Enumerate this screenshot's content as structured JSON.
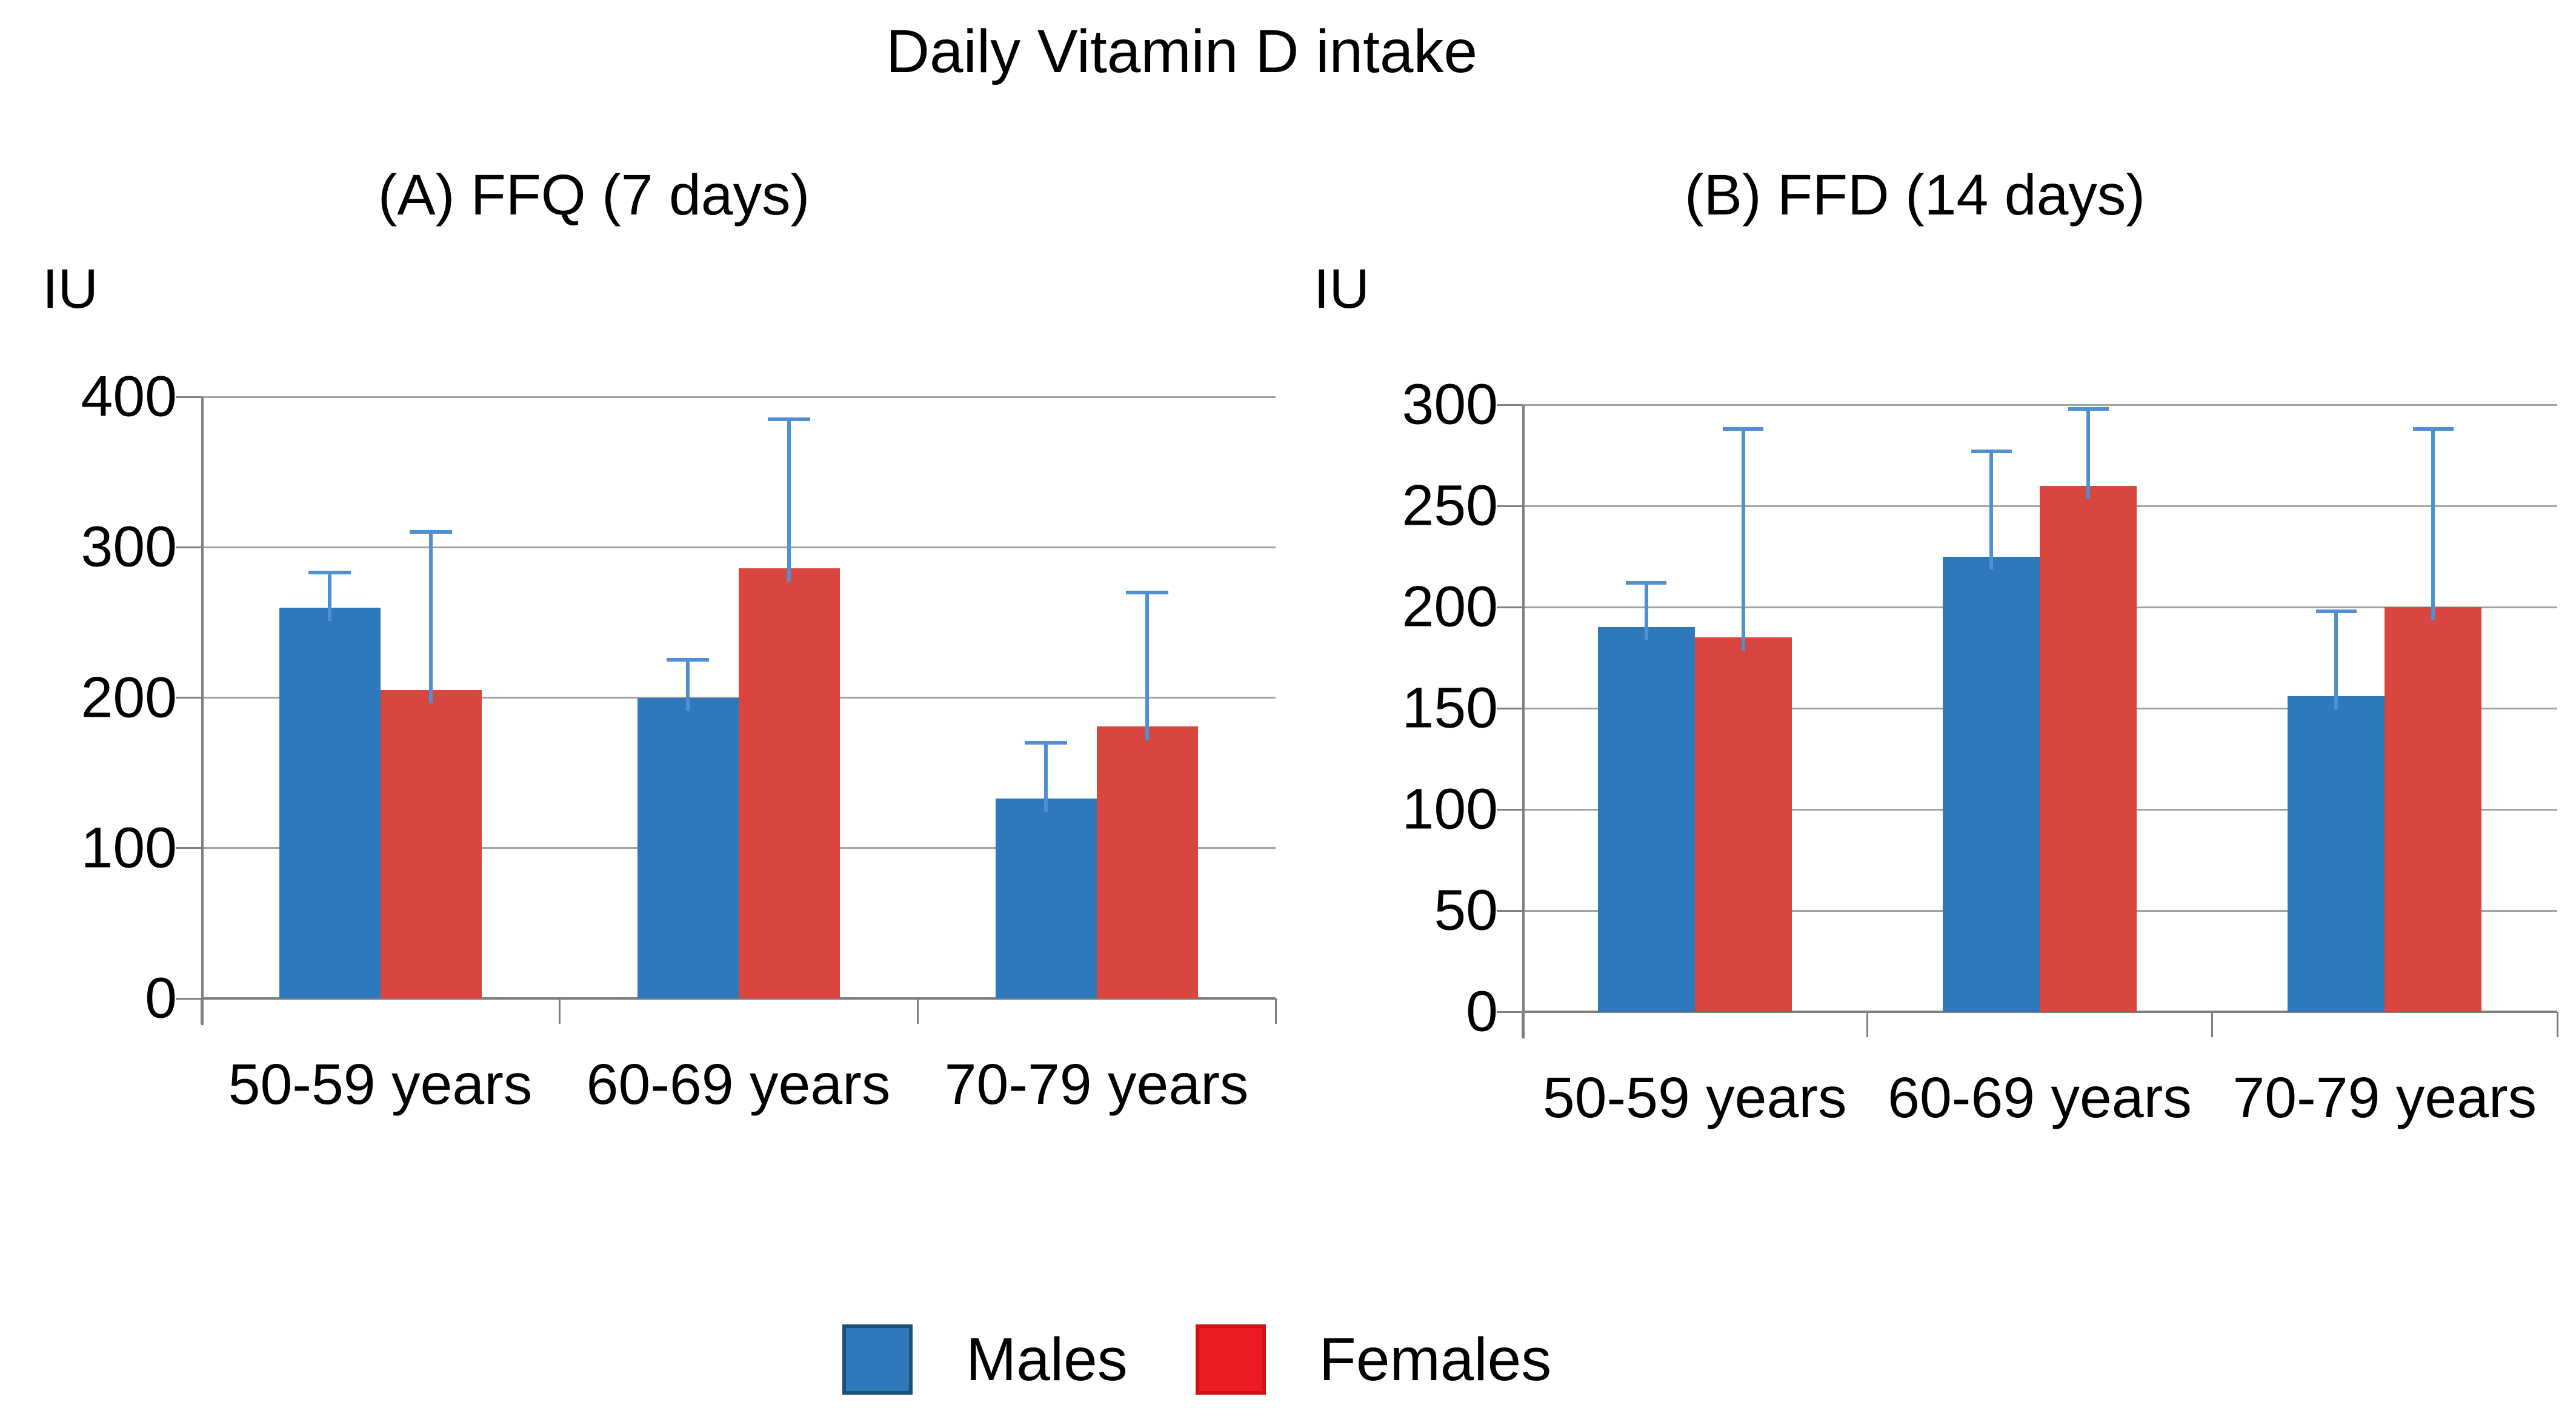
{
  "page_title": "Daily Vitamin D intake",
  "ylabel_unit": "IU",
  "legend": {
    "position": "bottom",
    "items": [
      {
        "label": "Males",
        "color": "#2e79bb",
        "border": "#1a5276"
      },
      {
        "label": "Females",
        "color": "#ec1b23",
        "border": "#d01118"
      }
    ]
  },
  "colors": {
    "males_bar": "#2e79bb",
    "females_bar": "#d8463f",
    "error_bar": "#4e90d1",
    "gridline": "#a3a3a3",
    "axis": "#7f7f7f"
  },
  "chart_data": [
    {
      "type": "bar",
      "panel": "A",
      "title": "(A)  FFQ (7 days)",
      "ylabel": "IU",
      "xlabel": "",
      "ylim": [
        0,
        400
      ],
      "ytick_step": 100,
      "grid": true,
      "categories": [
        "50-59 years",
        "60-69 years",
        "70-79 years"
      ],
      "series": [
        {
          "name": "Males",
          "color": "#2e79bb",
          "values": [
            260,
            200,
            133
          ],
          "error_top": [
            283,
            225,
            170
          ]
        },
        {
          "name": "Females",
          "color": "#d8463f",
          "values": [
            205,
            286,
            181
          ],
          "error_top": [
            310,
            385,
            270
          ]
        }
      ]
    },
    {
      "type": "bar",
      "panel": "B",
      "title": "(B) FFD (14 days)",
      "ylabel": "IU",
      "xlabel": "",
      "ylim": [
        0,
        300
      ],
      "ytick_step": 50,
      "grid": true,
      "categories": [
        "50-59 years",
        "60-69 years",
        "70-79 years"
      ],
      "series": [
        {
          "name": "Males",
          "color": "#2e79bb",
          "values": [
            190,
            225,
            156
          ],
          "error_top": [
            212,
            277,
            198
          ]
        },
        {
          "name": "Females",
          "color": "#d8463f",
          "values": [
            185,
            260,
            200
          ],
          "error_top": [
            288,
            298,
            288
          ]
        }
      ]
    }
  ]
}
